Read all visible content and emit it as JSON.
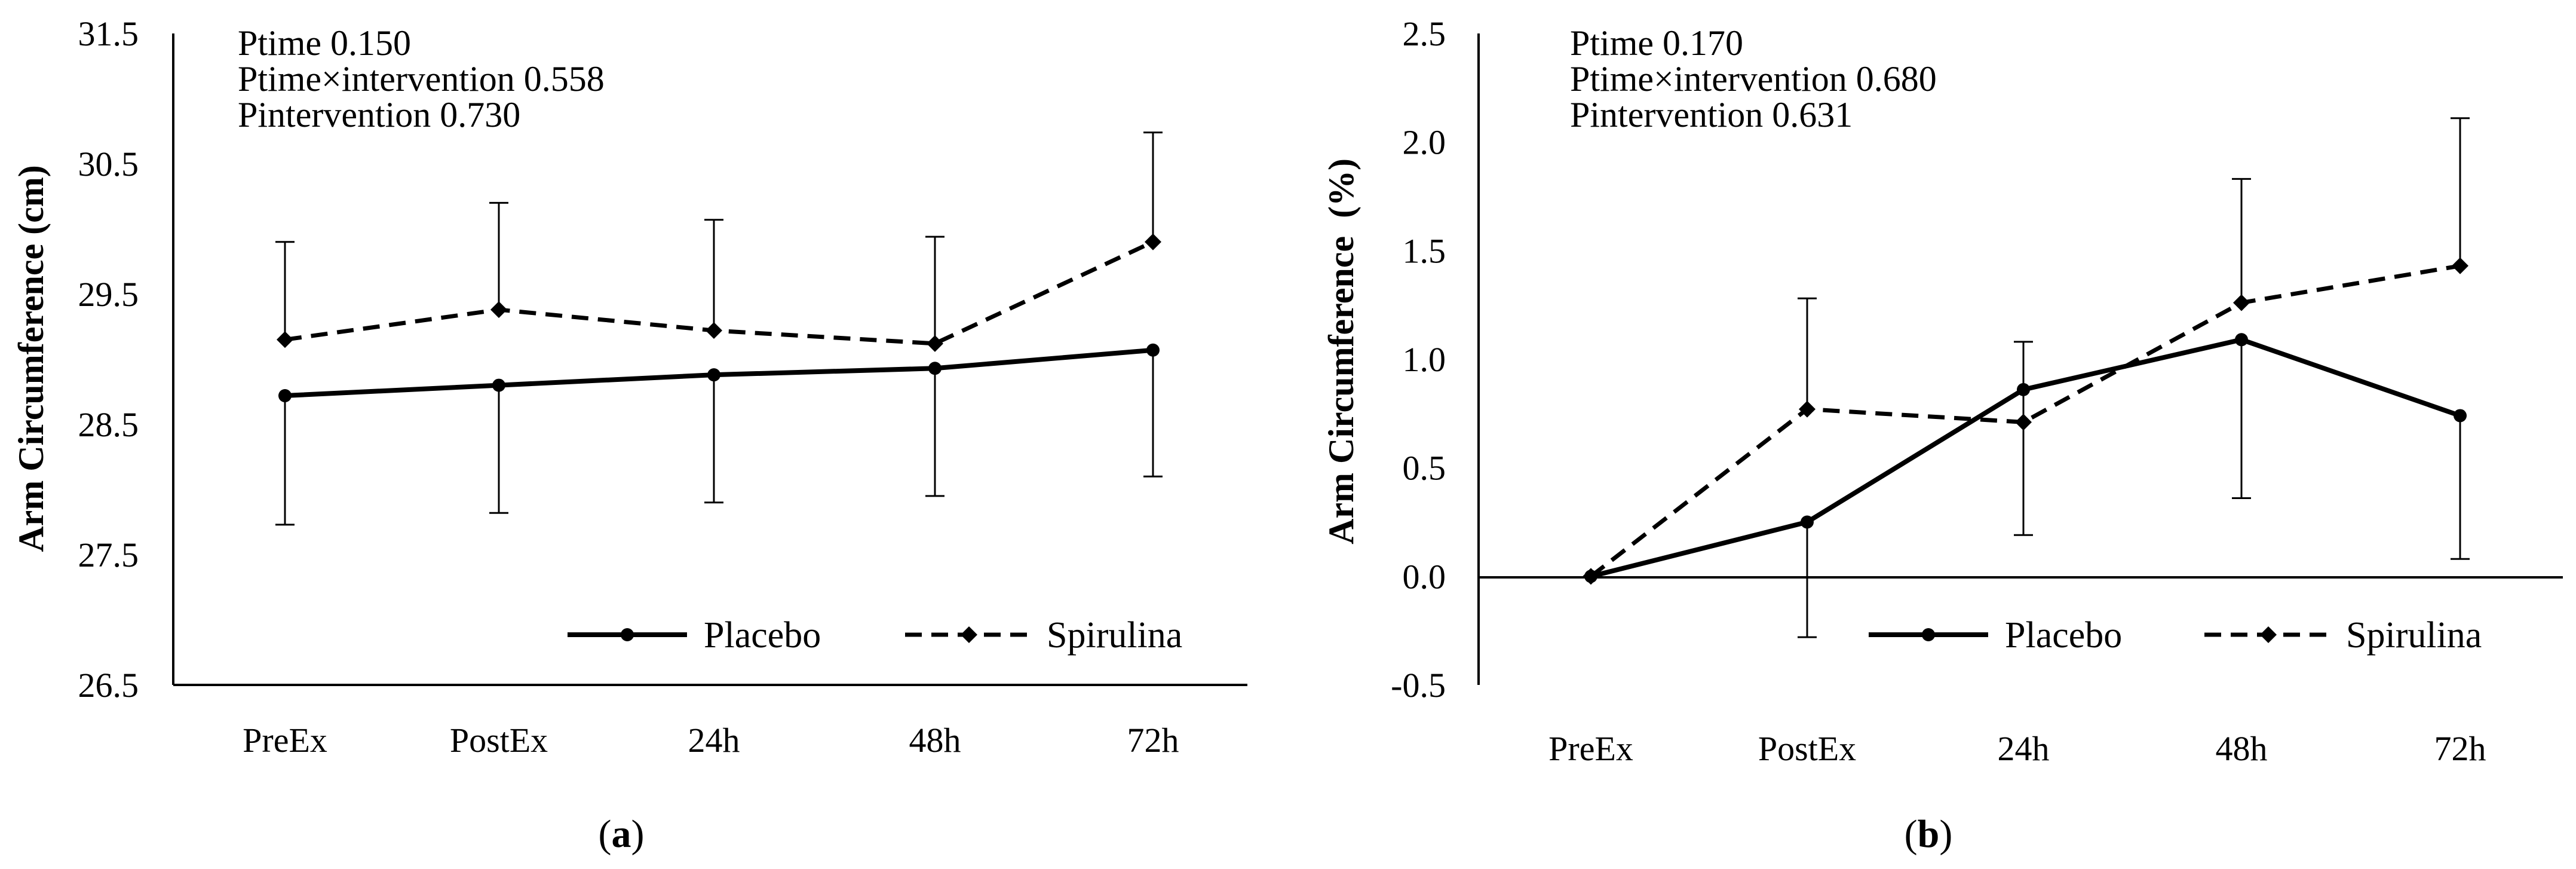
{
  "chart_data": [
    {
      "type": "line",
      "panel_label": "a",
      "title": "",
      "xlabel": "",
      "ylabel": "Arm Circumference (cm)",
      "categories": [
        "PreEx",
        "PostEx",
        "24h",
        "48h",
        "72h"
      ],
      "ylim": [
        26.5,
        31.5
      ],
      "yticks": [
        "26.5",
        "27.5",
        "28.5",
        "29.5",
        "30.5",
        "31.5"
      ],
      "annotations": [
        "Ptime 0.150",
        "Ptime×intervention 0.558",
        "Pintervention 0.730"
      ],
      "series": [
        {
          "name": "Placebo",
          "style": "solid",
          "marker": "circle",
          "values": [
            28.72,
            28.8,
            28.88,
            28.93,
            29.07
          ],
          "error_lower": [
            27.73,
            27.82,
            27.9,
            27.95,
            28.1
          ],
          "error_upper": null
        },
        {
          "name": "Spirulina",
          "style": "dashed",
          "marker": "diamond",
          "values": [
            29.15,
            29.38,
            29.22,
            29.12,
            29.9
          ],
          "error_lower": null,
          "error_upper": [
            29.9,
            30.2,
            30.07,
            29.94,
            30.74
          ]
        }
      ],
      "legend": "bottom-right"
    },
    {
      "type": "line",
      "panel_label": "b",
      "title": "",
      "xlabel": "",
      "ylabel": "Arm Circumference  (%)",
      "categories": [
        "PreEx",
        "PostEx",
        "24h",
        "48h",
        "72h"
      ],
      "ylim": [
        -0.5,
        2.5
      ],
      "yticks": [
        "-0.5",
        "0.0",
        "0.5",
        "1.0",
        "1.5",
        "2.0",
        "2.5"
      ],
      "annotations": [
        "Ptime 0.170",
        "Ptime×intervention 0.680",
        "Pintervention 0.631"
      ],
      "series": [
        {
          "name": "Placebo",
          "style": "solid",
          "marker": "circle",
          "values": [
            0.0,
            0.25,
            0.86,
            1.09,
            0.74
          ],
          "error_lower": [
            0.0,
            -0.28,
            0.19,
            0.36,
            0.08
          ],
          "error_upper": null
        },
        {
          "name": "Spirulina",
          "style": "dashed",
          "marker": "diamond",
          "values": [
            0.0,
            0.77,
            0.71,
            1.26,
            1.43
          ],
          "error_lower": null,
          "error_upper": [
            0.0,
            1.28,
            1.08,
            1.83,
            2.11
          ]
        }
      ],
      "legend": "bottom-right"
    }
  ],
  "captions": {
    "a": "a",
    "b": "b"
  }
}
